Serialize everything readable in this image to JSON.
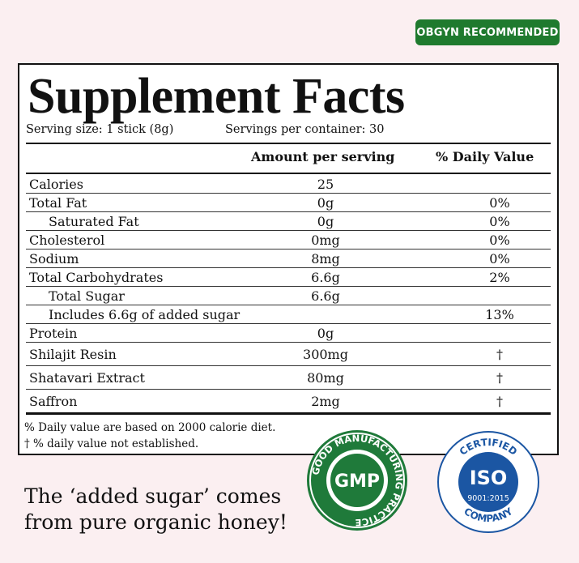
{
  "badge": "OBGYN RECOMMENDED",
  "label": {
    "title": "Supplement Facts",
    "serving_size": "Serving size: 1 stick (8g)",
    "servings_per_container": "Servings per container: 30",
    "columns": [
      "Amount per serving",
      "% Daily Value"
    ],
    "rows": [
      {
        "name": "Calories",
        "amount": "25"
      },
      {
        "name": "Total Fat",
        "amount": "0g",
        "daily_value": "0%"
      },
      {
        "name": "Saturated Fat",
        "amount": "0g",
        "daily_value": "0%"
      },
      {
        "name": "Cholesterol",
        "amount": "0mg",
        "daily_value": "0%"
      },
      {
        "name": "Sodium",
        "amount": "8mg",
        "daily_value": "0%"
      },
      {
        "name": "Total Carbohydrates",
        "amount": "6.6g",
        "daily_value": "2%"
      },
      {
        "name": "Total Sugar",
        "amount": "6.6g"
      },
      {
        "name": "Includes 6.6g of added sugar",
        "daily_value": "13%"
      },
      {
        "name": "Protein",
        "amount": "0g"
      },
      {
        "name": "Shilajit Resin",
        "amount": "300mg",
        "daily_value": "†"
      },
      {
        "name": "Shatavari Extract",
        "amount": "80mg",
        "daily_value": "†"
      },
      {
        "name": "Saffron",
        "amount": "2mg",
        "daily_value": "†"
      }
    ],
    "footnotes": [
      "% Daily value are based on 2000 calorie diet.",
      "†  % daily value not established."
    ]
  },
  "tagline": [
    "The ‘added sugar’ comes",
    "from pure organic honey!"
  ],
  "seals": {
    "gmp": {
      "ring_text": "GOOD MANUFACTURING PRACTICE",
      "center": "GMP"
    },
    "iso": {
      "top": "CERTIFIED",
      "center": "ISO",
      "standard": "9001:2015",
      "bottom": "COMPANY"
    }
  }
}
